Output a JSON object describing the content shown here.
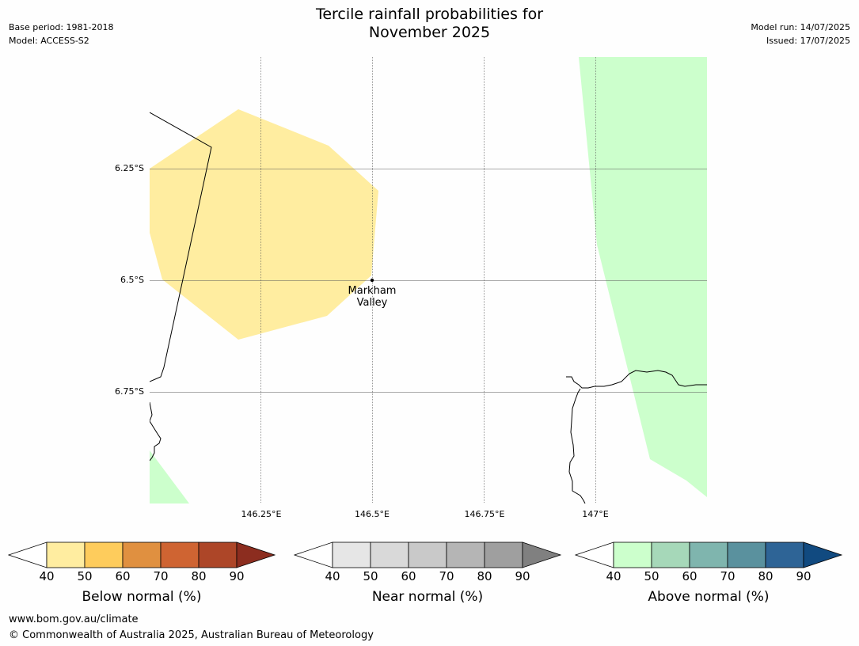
{
  "header": {
    "title_line1": "Tercile rainfall probabilities for",
    "title_line2": "November 2025",
    "base_period": "Base period: 1981-2018",
    "model": "Model: ACCESS-S2",
    "model_run": "Model run: 14/07/2025",
    "issued": "Issued: 17/07/2025"
  },
  "map": {
    "lat_labels": [
      "6.25°S",
      "6.5°S",
      "6.75°S"
    ],
    "lon_labels": [
      "146.25°E",
      "146.5°E",
      "146.75°E",
      "147°E"
    ],
    "place": {
      "name_line1": "Markham",
      "name_line2": "Valley"
    },
    "colors": {
      "below_40_50": "#ffeda0",
      "above_40_50": "#ccffcc",
      "gridline": "#555555",
      "coastline": "#000000"
    }
  },
  "legends": [
    {
      "title": "Below normal (%)",
      "ticks": [
        "40",
        "50",
        "60",
        "70",
        "80",
        "90"
      ],
      "colors": [
        "#ffeda0",
        "#fecc5c",
        "#e09040",
        "#cf6432",
        "#ad4628",
        "#8c2d1f"
      ]
    },
    {
      "title": "Near normal (%)",
      "ticks": [
        "40",
        "50",
        "60",
        "70",
        "80",
        "90"
      ],
      "colors": [
        "#e6e6e6",
        "#d9d9d9",
        "#c9c9c9",
        "#b5b5b5",
        "#9f9f9f",
        "#808080"
      ]
    },
    {
      "title": "Above normal (%)",
      "ticks": [
        "40",
        "50",
        "60",
        "70",
        "80",
        "90"
      ],
      "colors": [
        "#ccffcc",
        "#a6d8b9",
        "#7fb5ae",
        "#5a919e",
        "#2e6496",
        "#114a80"
      ]
    }
  ],
  "footer": {
    "url": "www.bom.gov.au/climate",
    "copyright": "© Commonwealth of Australia 2025, Australian Bureau of Meteorology"
  }
}
